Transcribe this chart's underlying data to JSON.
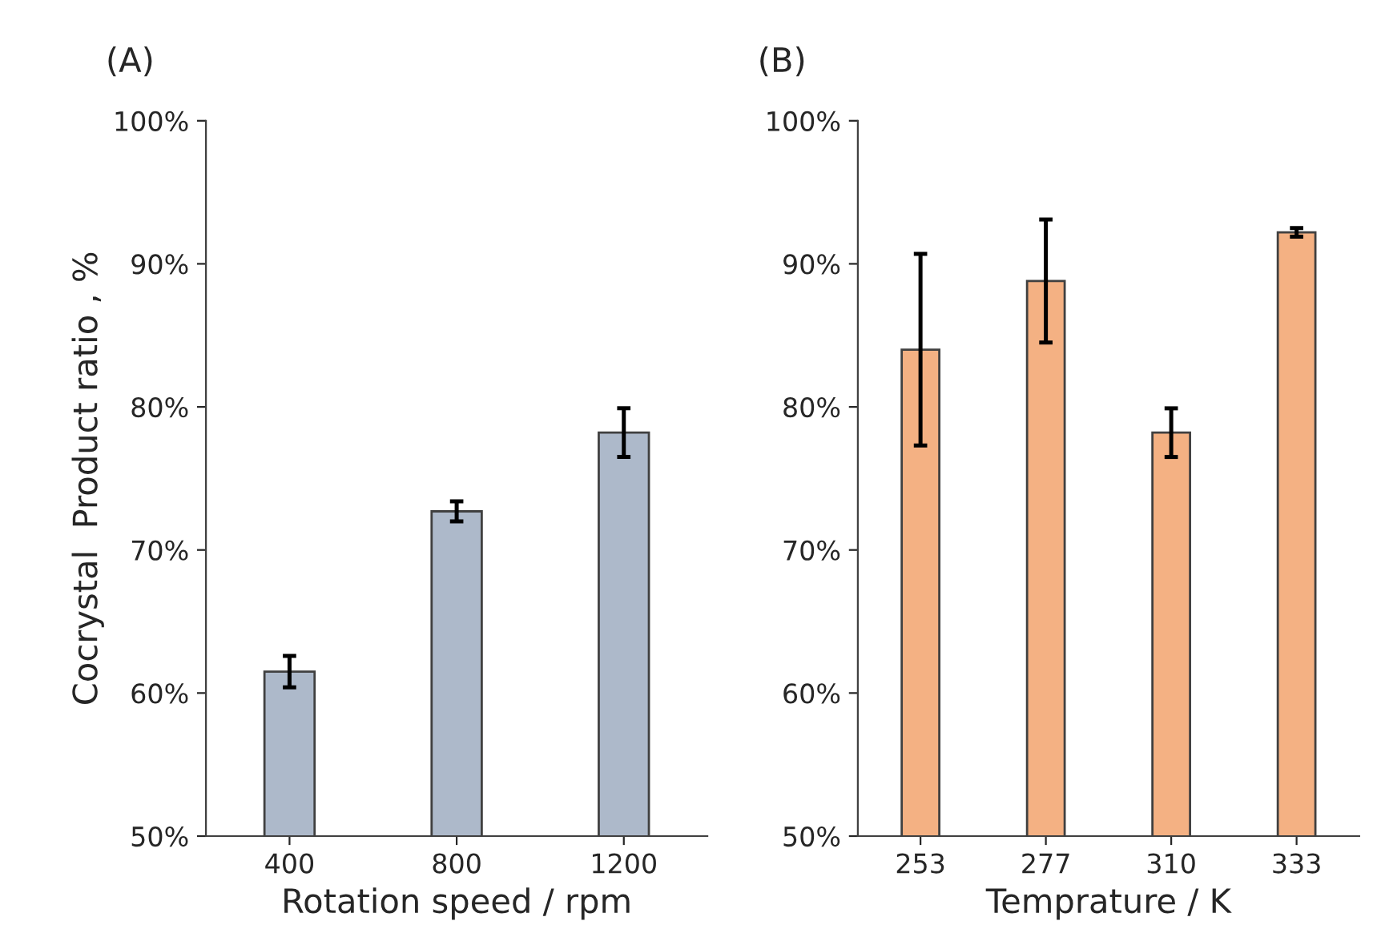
{
  "chart_data": [
    {
      "type": "bar",
      "title": "(A)",
      "xlabel": "Rotation speed / rpm",
      "ylabel": "Cocrystal  Product ratio , %",
      "categories": [
        "400",
        "800",
        "1200"
      ],
      "values": [
        61.5,
        72.7,
        78.2
      ],
      "errors": [
        1.1,
        0.7,
        1.7
      ],
      "color": "#adb9ca",
      "ylim": [
        50,
        100
      ],
      "yticks": [
        {
          "value": 50,
          "label": "50%"
        },
        {
          "value": 60,
          "label": "60%"
        },
        {
          "value": 70,
          "label": "70%"
        },
        {
          "value": 80,
          "label": "80%"
        },
        {
          "value": 90,
          "label": "90%"
        },
        {
          "value": 100,
          "label": "100%"
        }
      ],
      "grid": false,
      "legend": false
    },
    {
      "type": "bar",
      "title": "(B)",
      "xlabel": "Temprature / K",
      "categories": [
        "253",
        "277",
        "310",
        "333"
      ],
      "values": [
        84.0,
        88.8,
        78.2,
        92.2
      ],
      "errors": [
        6.7,
        4.3,
        1.7,
        0.3
      ],
      "color": "#f4b183",
      "ylim": [
        50,
        100
      ],
      "yticks": [
        {
          "value": 50,
          "label": "50%"
        },
        {
          "value": 60,
          "label": "60%"
        },
        {
          "value": 70,
          "label": "70%"
        },
        {
          "value": 80,
          "label": "80%"
        },
        {
          "value": 90,
          "label": "90%"
        },
        {
          "value": 100,
          "label": "100%"
        }
      ],
      "grid": false,
      "legend": false
    }
  ]
}
